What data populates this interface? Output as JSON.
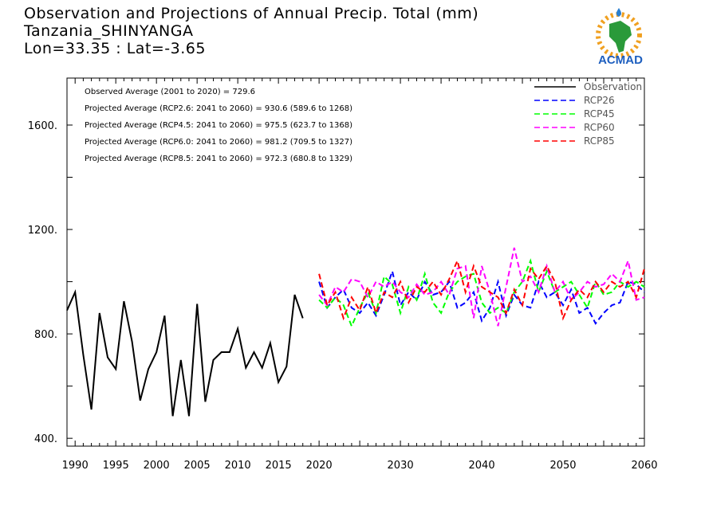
{
  "title": {
    "line1": "Observation and Projections of Annual Precip. Total (mm)",
    "line2": "Tanzania_SHINYANGA",
    "line3": "Lon=33.35 : Lat=-3.65"
  },
  "logo": {
    "text": "ACMAD",
    "icon": "africa-map-logo"
  },
  "annotations": [
    "Observed Average (2001 to 2020) = 729.6",
    "Projected Average (RCP2.6: 2041 to 2060) = 930.6 (589.6 to 1268)",
    "Projected Average (RCP4.5: 2041 to 2060) = 975.5 (623.7 to 1368)",
    "Projected Average (RCP6.0: 2041 to 2060) = 981.2 (709.5 to 1327)",
    "Projected Average (RCP8.5: 2041 to 2060) = 972.3 (680.8 to 1329)"
  ],
  "chart_data": {
    "type": "line",
    "xlim": [
      1989,
      2060
    ],
    "ylim": [
      370,
      1780
    ],
    "grid": false,
    "legend_position": "top-right",
    "x_ticks": [
      {
        "value": 1990,
        "label": "1990"
      },
      {
        "value": 1995,
        "label": "1995"
      },
      {
        "value": 2000,
        "label": "2000"
      },
      {
        "value": 2005,
        "label": "2005"
      },
      {
        "value": 2010,
        "label": "2010"
      },
      {
        "value": 2015,
        "label": "2015"
      },
      {
        "value": 2020,
        "label": "2020"
      },
      {
        "value": 2030,
        "label": "2030"
      },
      {
        "value": 2040,
        "label": "2040"
      },
      {
        "value": 2050,
        "label": "2050"
      },
      {
        "value": 2060,
        "label": "2060"
      }
    ],
    "y_ticks": [
      {
        "value": 400,
        "label": "400."
      },
      {
        "value": 800,
        "label": "800."
      },
      {
        "value": 1200,
        "label": "1200."
      },
      {
        "value": 1600,
        "label": "1600."
      }
    ],
    "series": [
      {
        "name": "Observation",
        "color": "#000000",
        "dashed": false,
        "x": [
          1989,
          1990,
          1991,
          1992,
          1993,
          1994,
          1995,
          1996,
          1997,
          1998,
          1999,
          2000,
          2001,
          2002,
          2003,
          2004,
          2005,
          2006,
          2007,
          2008,
          2009,
          2010,
          2011,
          2012,
          2013,
          2014,
          2015,
          2016,
          2017,
          2018,
          2019,
          2020
        ],
        "y": [
          890,
          960,
          720,
          510,
          880,
          710,
          665,
          925,
          770,
          545,
          665,
          730,
          870,
          485,
          700,
          485,
          915,
          540,
          700,
          730,
          730,
          820,
          670,
          730,
          670,
          765,
          615,
          675,
          950,
          860,
          null,
          null
        ]
      },
      {
        "name": "RCP26",
        "color": "#0000ff",
        "dashed": true,
        "x": [
          2020,
          2021,
          2022,
          2023,
          2024,
          2025,
          2026,
          2027,
          2028,
          2029,
          2030,
          2031,
          2032,
          2033,
          2034,
          2035,
          2036,
          2037,
          2038,
          2039,
          2040,
          2041,
          2042,
          2043,
          2044,
          2045,
          2046,
          2047,
          2048,
          2049,
          2050,
          2051,
          2052,
          2053,
          2054,
          2055,
          2056,
          2057,
          2058,
          2059,
          2060
        ],
        "y": [
          1000,
          900,
          940,
          970,
          900,
          880,
          920,
          870,
          950,
          1040,
          910,
          960,
          930,
          1000,
          950,
          960,
          1000,
          900,
          920,
          960,
          850,
          900,
          1000,
          870,
          950,
          910,
          900,
          1000,
          940,
          960,
          910,
          970,
          880,
          900,
          840,
          880,
          910,
          920,
          1000,
          990,
          960
        ]
      },
      {
        "name": "RCP45",
        "color": "#00ff00",
        "dashed": true,
        "x": [
          2020,
          2021,
          2022,
          2023,
          2024,
          2025,
          2026,
          2027,
          2028,
          2029,
          2030,
          2031,
          2032,
          2033,
          2034,
          2035,
          2036,
          2037,
          2038,
          2039,
          2040,
          2041,
          2042,
          2043,
          2044,
          2045,
          2046,
          2047,
          2048,
          2049,
          2050,
          2051,
          2052,
          2053,
          2054,
          2055,
          2056,
          2057,
          2058,
          2059,
          2060
        ],
        "y": [
          930,
          900,
          940,
          910,
          830,
          900,
          960,
          880,
          1020,
          990,
          880,
          980,
          930,
          1030,
          920,
          880,
          960,
          1000,
          1020,
          1030,
          920,
          880,
          900,
          880,
          960,
          1000,
          1080,
          960,
          1040,
          960,
          980,
          1000,
          950,
          900,
          1000,
          950,
          960,
          1000,
          980,
          1000,
          980
        ]
      },
      {
        "name": "RCP60",
        "color": "#ff00ff",
        "dashed": true,
        "x": [
          2020,
          2021,
          2022,
          2023,
          2024,
          2025,
          2026,
          2027,
          2028,
          2029,
          2030,
          2031,
          2032,
          2033,
          2034,
          2035,
          2036,
          2037,
          2038,
          2039,
          2040,
          2041,
          2042,
          2043,
          2044,
          2045,
          2046,
          2047,
          2048,
          2049,
          2050,
          2051,
          2052,
          2053,
          2054,
          2055,
          2056,
          2057,
          2058,
          2059,
          2060
        ],
        "y": [
          950,
          910,
          980,
          960,
          1010,
          1000,
          940,
          1000,
          980,
          1000,
          960,
          940,
          990,
          950,
          960,
          1000,
          950,
          1050,
          1060,
          860,
          1060,
          960,
          830,
          980,
          1130,
          1000,
          1020,
          960,
          1060,
          960,
          1000,
          930,
          960,
          1000,
          980,
          990,
          1030,
          1000,
          1080,
          930,
          940
        ]
      },
      {
        "name": "RCP85",
        "color": "#ff0000",
        "dashed": true,
        "x": [
          2020,
          2021,
          2022,
          2023,
          2024,
          2025,
          2026,
          2027,
          2028,
          2029,
          2030,
          2031,
          2032,
          2033,
          2034,
          2035,
          2036,
          2037,
          2038,
          2039,
          2040,
          2041,
          2042,
          2043,
          2044,
          2045,
          2046,
          2047,
          2048,
          2049,
          2050,
          2051,
          2052,
          2053,
          2054,
          2055,
          2056,
          2057,
          2058,
          2059,
          2060
        ],
        "y": [
          1030,
          910,
          960,
          860,
          940,
          890,
          980,
          880,
          960,
          940,
          1000,
          920,
          980,
          960,
          1000,
          950,
          1010,
          1080,
          960,
          1060,
          980,
          960,
          940,
          880,
          970,
          910,
          1050,
          1010,
          1060,
          1000,
          860,
          930,
          970,
          940,
          1000,
          960,
          1000,
          980,
          1000,
          940,
          1050
        ]
      }
    ]
  }
}
